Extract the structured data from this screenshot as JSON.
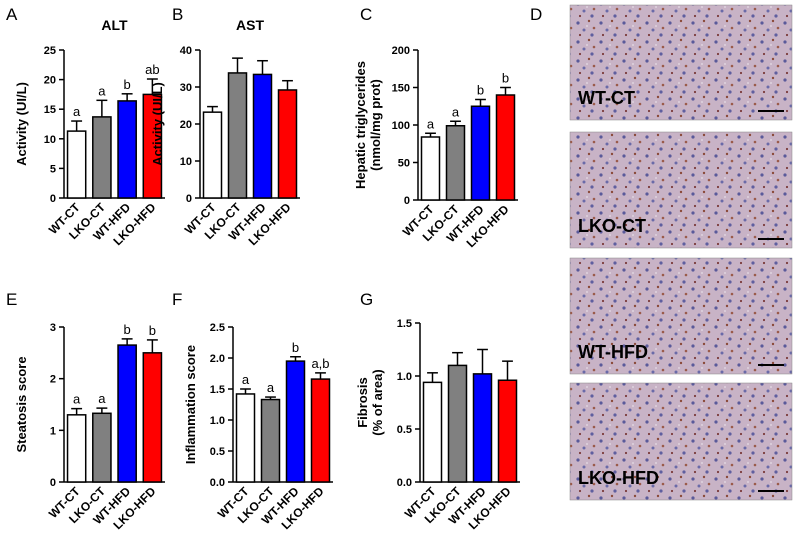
{
  "panel_labels": [
    "A",
    "B",
    "C",
    "D",
    "E",
    "F",
    "G"
  ],
  "chart_data": [
    {
      "type": "bar",
      "title": "ALT",
      "ylabel": [
        "Activity (UI/L)"
      ],
      "categories": [
        "WT-CT",
        "LKO-CT",
        "WT-HFD",
        "LKO-HFD"
      ],
      "values": [
        11.3,
        13.7,
        16.4,
        17.5
      ],
      "errors": [
        1.7,
        2.8,
        1.2,
        2.6
      ],
      "colors": [
        "#ffffff",
        "#808080",
        "#0000ff",
        "#ff0000"
      ],
      "annotations": [
        "a",
        "a",
        "b",
        "ab"
      ],
      "ylim": [
        0,
        25
      ],
      "yticks": [
        0,
        5,
        10,
        15,
        20,
        25
      ]
    },
    {
      "type": "bar",
      "title": "AST",
      "ylabel": [
        "Activity (UI/L)"
      ],
      "categories": [
        "WT-CT",
        "LKO-CT",
        "WT-HFD",
        "LKO-HFD"
      ],
      "values": [
        23.2,
        33.8,
        33.4,
        29.2
      ],
      "errors": [
        1.5,
        4,
        3.7,
        2.5
      ],
      "colors": [
        "#ffffff",
        "#808080",
        "#0000ff",
        "#ff0000"
      ],
      "ylim": [
        0,
        40
      ],
      "yticks": [
        0,
        10,
        20,
        30,
        40
      ]
    },
    {
      "type": "bar",
      "ylabel": [
        "Hepatic triglycerides",
        "(nmol/mg prot)"
      ],
      "categories": [
        "WT-CT",
        "LKO-CT",
        "WT-HFD",
        "LKO-HFD"
      ],
      "values": [
        84,
        99,
        125,
        140
      ],
      "errors": [
        5,
        6,
        9,
        10
      ],
      "colors": [
        "#ffffff",
        "#808080",
        "#0000ff",
        "#ff0000"
      ],
      "annotations": [
        "a",
        "a",
        "b",
        "b"
      ],
      "ylim": [
        0,
        200
      ],
      "yticks": [
        0,
        50,
        100,
        150,
        200
      ]
    },
    {
      "type": "bar",
      "ylabel": [
        "Steatosis score"
      ],
      "categories": [
        "WT-CT",
        "LKO-CT",
        "WT-HFD",
        "LKO-HFD"
      ],
      "values": [
        1.3,
        1.33,
        2.65,
        2.5
      ],
      "errors": [
        0.12,
        0.1,
        0.12,
        0.25
      ],
      "colors": [
        "#ffffff",
        "#808080",
        "#0000ff",
        "#ff0000"
      ],
      "annotations": [
        "a",
        "a",
        "b",
        "b"
      ],
      "ylim": [
        0,
        3
      ],
      "yticks": [
        0,
        1,
        2,
        3
      ]
    },
    {
      "type": "bar",
      "ylabel": [
        "Inflammation score"
      ],
      "categories": [
        "WT-CT",
        "LKO-CT",
        "WT-HFD",
        "LKO-HFD"
      ],
      "values": [
        1.42,
        1.33,
        1.95,
        1.66
      ],
      "errors": [
        0.08,
        0.04,
        0.07,
        0.1
      ],
      "colors": [
        "#ffffff",
        "#808080",
        "#0000ff",
        "#ff0000"
      ],
      "annotations": [
        "a",
        "a",
        "b",
        "a,b"
      ],
      "ylim": [
        0,
        2.5
      ],
      "yticks": [
        {
          "value": 0,
          "label": "0.0"
        },
        0.5,
        {
          "value": 1,
          "label": "1.0"
        },
        1.5,
        {
          "value": 2,
          "label": "2.0"
        },
        2.5
      ]
    },
    {
      "type": "bar",
      "ylabel": [
        "Fibrosis",
        "(% of area)"
      ],
      "categories": [
        "WT-CT",
        "LKO-CT",
        "WT-HFD",
        "LKO-HFD"
      ],
      "values": [
        0.94,
        1.1,
        1.02,
        0.96
      ],
      "errors": [
        0.09,
        0.12,
        0.23,
        0.18
      ],
      "colors": [
        "#ffffff",
        "#808080",
        "#0000ff",
        "#ff0000"
      ],
      "ylim": [
        0,
        1.5
      ],
      "yticks": [
        {
          "value": 0,
          "label": "0.0"
        },
        0.5,
        {
          "value": 1,
          "label": "1.0"
        },
        1.5
      ]
    }
  ],
  "micrographs": {
    "labels": [
      "WT-CT",
      "LKO-CT",
      "WT-HFD",
      "LKO-HFD"
    ]
  }
}
